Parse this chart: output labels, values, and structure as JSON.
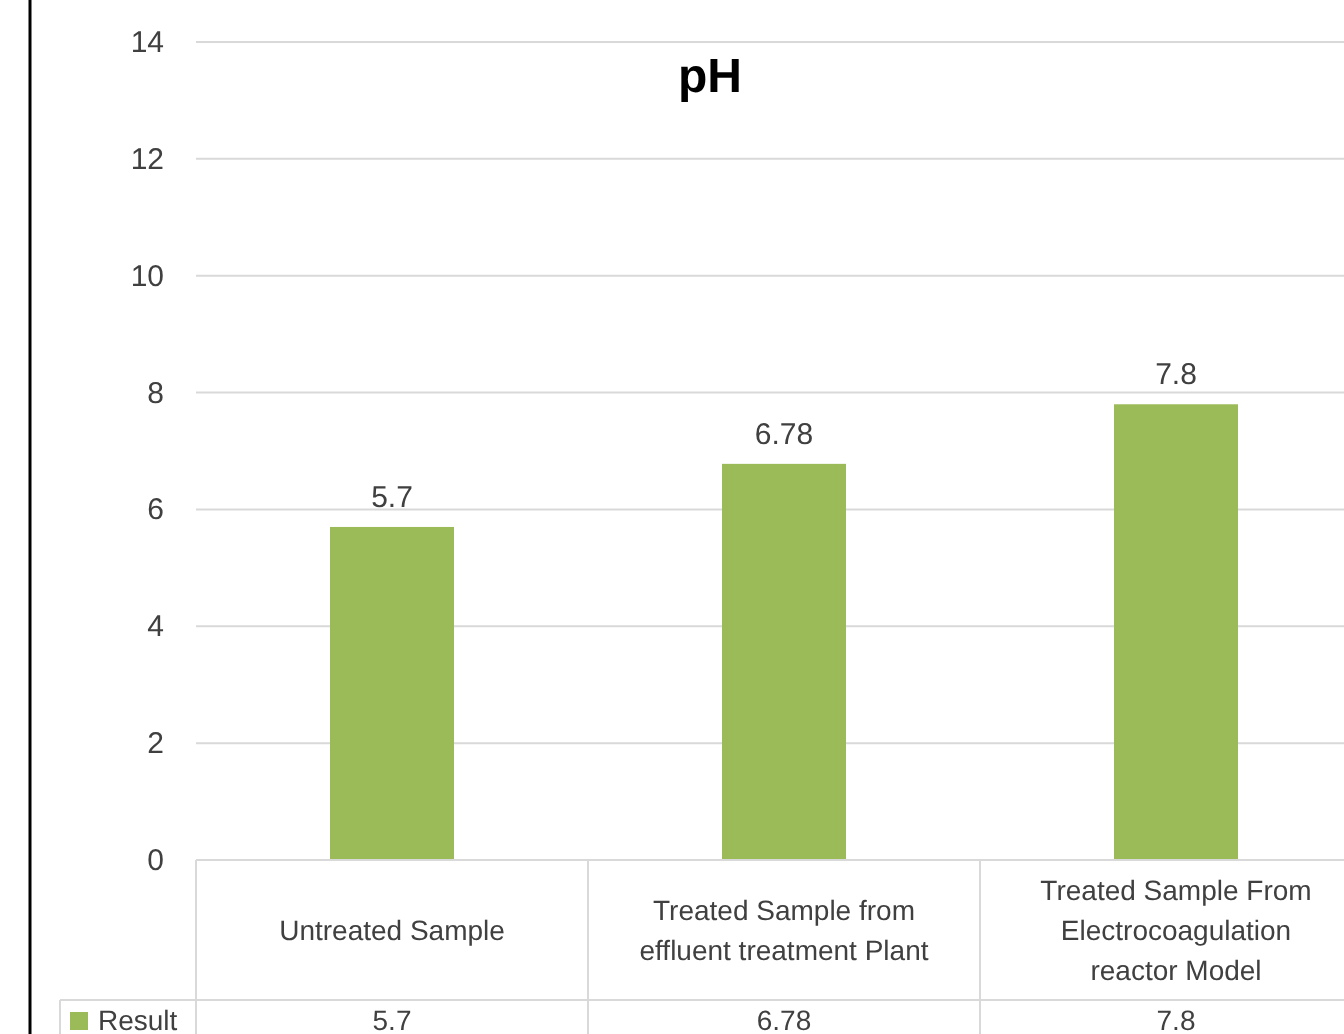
{
  "chart_data": {
    "type": "bar",
    "title": "pH",
    "categories": [
      "Untreated Sample",
      "Treated Sample from effluent treatment Plant",
      "Treated Sample From Electrocoagulation reactor Model"
    ],
    "series": [
      {
        "name": "Result",
        "color": "#9bbb59",
        "values": [
          5.7,
          6.78,
          7.8
        ]
      }
    ],
    "annotations": [
      "5.7",
      "6.78",
      "7.8"
    ],
    "ylim": [
      0,
      14
    ],
    "yticks": [
      0,
      2,
      4,
      6,
      8,
      10,
      12,
      14
    ],
    "grid": "y",
    "data_labels": true,
    "legend": "bottom"
  }
}
